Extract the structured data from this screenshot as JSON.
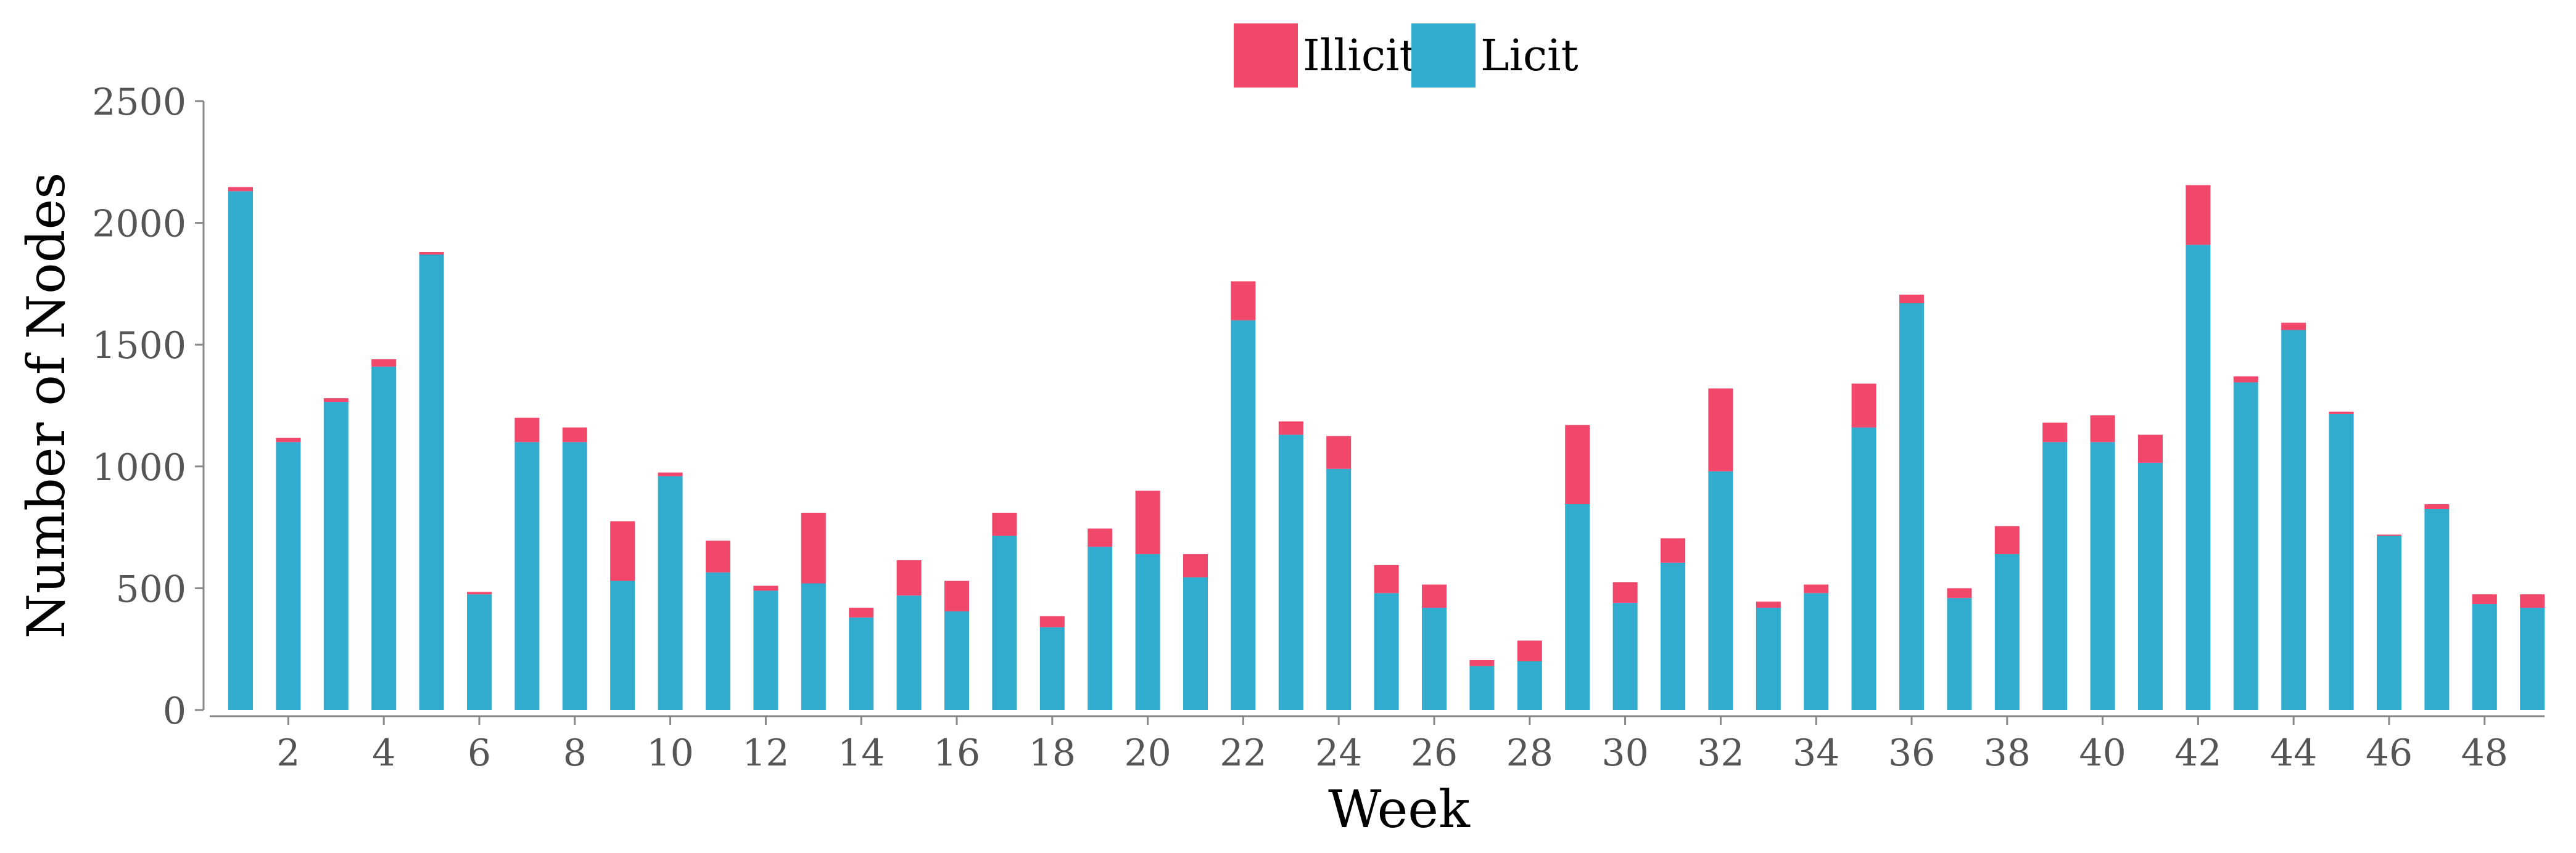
{
  "chart_data": {
    "type": "bar",
    "stacked": true,
    "xlabel": "Week",
    "ylabel": "Number of Nodes",
    "ylim": [
      0,
      2500
    ],
    "yticks": [
      0,
      500,
      1000,
      1500,
      2000,
      2500
    ],
    "xticks": [
      2,
      4,
      6,
      8,
      10,
      12,
      14,
      16,
      18,
      20,
      22,
      24,
      26,
      28,
      30,
      32,
      34,
      36,
      38,
      40,
      42,
      44,
      46,
      48
    ],
    "x": [
      1,
      2,
      3,
      4,
      5,
      6,
      7,
      8,
      9,
      10,
      11,
      12,
      13,
      14,
      15,
      16,
      17,
      18,
      19,
      20,
      21,
      22,
      23,
      24,
      25,
      26,
      27,
      28,
      29,
      30,
      31,
      32,
      33,
      34,
      35,
      36,
      37,
      38,
      39,
      40,
      41,
      42,
      43,
      44,
      45,
      46,
      47,
      48,
      49
    ],
    "legend_position": "top-center",
    "grid": false,
    "series": [
      {
        "name": "Licit",
        "color": "#31acce",
        "values": [
          2130,
          1100,
          1265,
          1410,
          1870,
          475,
          1100,
          1100,
          530,
          960,
          565,
          490,
          520,
          380,
          470,
          405,
          715,
          340,
          670,
          640,
          545,
          1600,
          1130,
          990,
          480,
          420,
          180,
          200,
          845,
          440,
          605,
          980,
          420,
          480,
          1160,
          1670,
          460,
          640,
          1100,
          1100,
          1015,
          1910,
          1345,
          1560,
          1215,
          715,
          825,
          435,
          420
        ]
      },
      {
        "name": "Illicit",
        "color": "#f0476a",
        "values": [
          17,
          17,
          15,
          30,
          10,
          10,
          100,
          60,
          245,
          15,
          130,
          20,
          290,
          40,
          145,
          125,
          95,
          45,
          75,
          260,
          95,
          160,
          55,
          135,
          115,
          95,
          25,
          85,
          325,
          85,
          100,
          340,
          25,
          35,
          180,
          35,
          40,
          115,
          80,
          110,
          115,
          245,
          25,
          30,
          10,
          5,
          20,
          40,
          55
        ]
      }
    ]
  }
}
